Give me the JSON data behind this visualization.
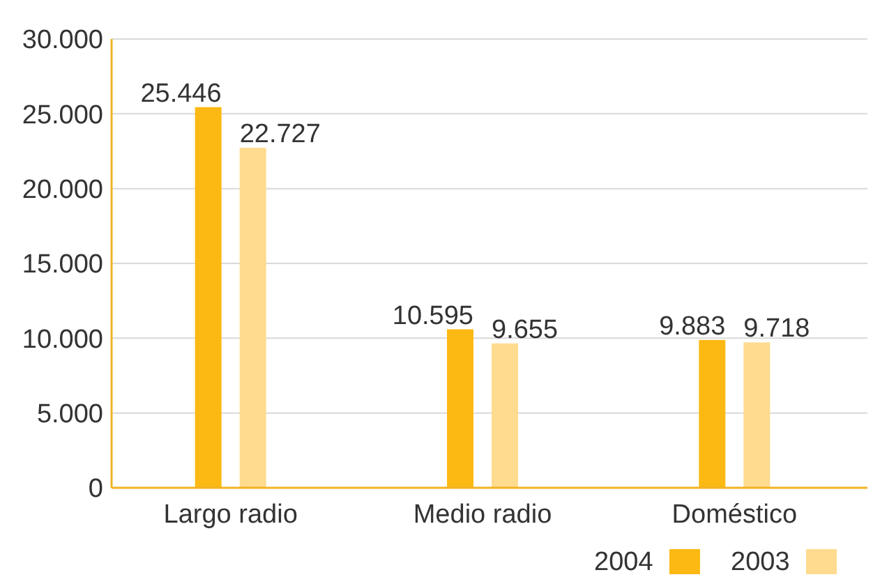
{
  "chart_data": {
    "type": "bar",
    "categories": [
      "Largo radio",
      "Medio radio",
      "Doméstico"
    ],
    "series": [
      {
        "name": "2004",
        "color": "#fdb913",
        "values": [
          25446,
          10595,
          9883
        ],
        "value_labels": [
          "25.446",
          "10.595",
          "9.883"
        ]
      },
      {
        "name": "2003",
        "color": "#fedb8e",
        "values": [
          22727,
          9655,
          9718
        ],
        "value_labels": [
          "22.727",
          "9.655",
          "9.718"
        ]
      }
    ],
    "ylim": [
      0,
      30000
    ],
    "yticks": [
      {
        "value": 0,
        "label": "0"
      },
      {
        "value": 5000,
        "label": "5.000"
      },
      {
        "value": 10000,
        "label": "10.000"
      },
      {
        "value": 15000,
        "label": "15.000"
      },
      {
        "value": 20000,
        "label": "20.000"
      },
      {
        "value": 25000,
        "label": "25.000"
      },
      {
        "value": 30000,
        "label": "30.000"
      }
    ],
    "grid": "y",
    "legend": "bottom right"
  }
}
